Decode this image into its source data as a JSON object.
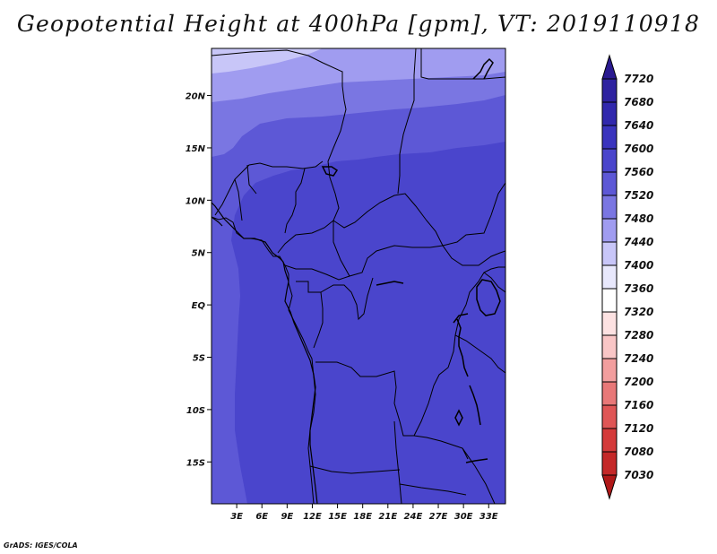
{
  "title": "Geopotential Height at 400hPa [gpm], VT: 2019110918",
  "credit": "GrADS: IGES/COLA",
  "map": {
    "lon_range": [
      0,
      35
    ],
    "lat_range": [
      -19,
      24.5
    ],
    "lat_ticks": [
      {
        "value": 20,
        "label": "20N"
      },
      {
        "value": 15,
        "label": "15N"
      },
      {
        "value": 10,
        "label": "10N"
      },
      {
        "value": 5,
        "label": "5N"
      },
      {
        "value": 0,
        "label": "EQ"
      },
      {
        "value": -5,
        "label": "5S"
      },
      {
        "value": -10,
        "label": "10S"
      },
      {
        "value": -15,
        "label": "15S"
      }
    ],
    "lon_ticks": [
      {
        "value": 3,
        "label": "3E"
      },
      {
        "value": 6,
        "label": "6E"
      },
      {
        "value": 9,
        "label": "9E"
      },
      {
        "value": 12,
        "label": "12E"
      },
      {
        "value": 15,
        "label": "15E"
      },
      {
        "value": 18,
        "label": "18E"
      },
      {
        "value": 21,
        "label": "21E"
      },
      {
        "value": 24,
        "label": "24E"
      },
      {
        "value": 27,
        "label": "27E"
      },
      {
        "value": 30,
        "label": "30E"
      },
      {
        "value": 33,
        "label": "33E"
      }
    ]
  },
  "colorbar": {
    "labels": [
      "7720",
      "7680",
      "7640",
      "7600",
      "7560",
      "7520",
      "7480",
      "7440",
      "7400",
      "7360",
      "7320",
      "7280",
      "7240",
      "7200",
      "7160",
      "7120",
      "7080",
      "7030"
    ],
    "colors": [
      "#2a1a90",
      "#2e22a0",
      "#3128ad",
      "#3a34be",
      "#4a45cc",
      "#5d58d6",
      "#7a76e2",
      "#a09cf0",
      "#c8c6f8",
      "#e8e8fc",
      "#ffffff",
      "#fde2e2",
      "#f9c6c6",
      "#f29e9e",
      "#e87878",
      "#df5656",
      "#d43a3a",
      "#c42828",
      "#b01818"
    ]
  },
  "fields": {
    "colors": {
      "c7440": "#c8c6f8",
      "c7480": "#a09cf0",
      "c7520": "#7a76e2",
      "c7560": "#5d58d6",
      "c7600": "#4a45cc"
    }
  }
}
